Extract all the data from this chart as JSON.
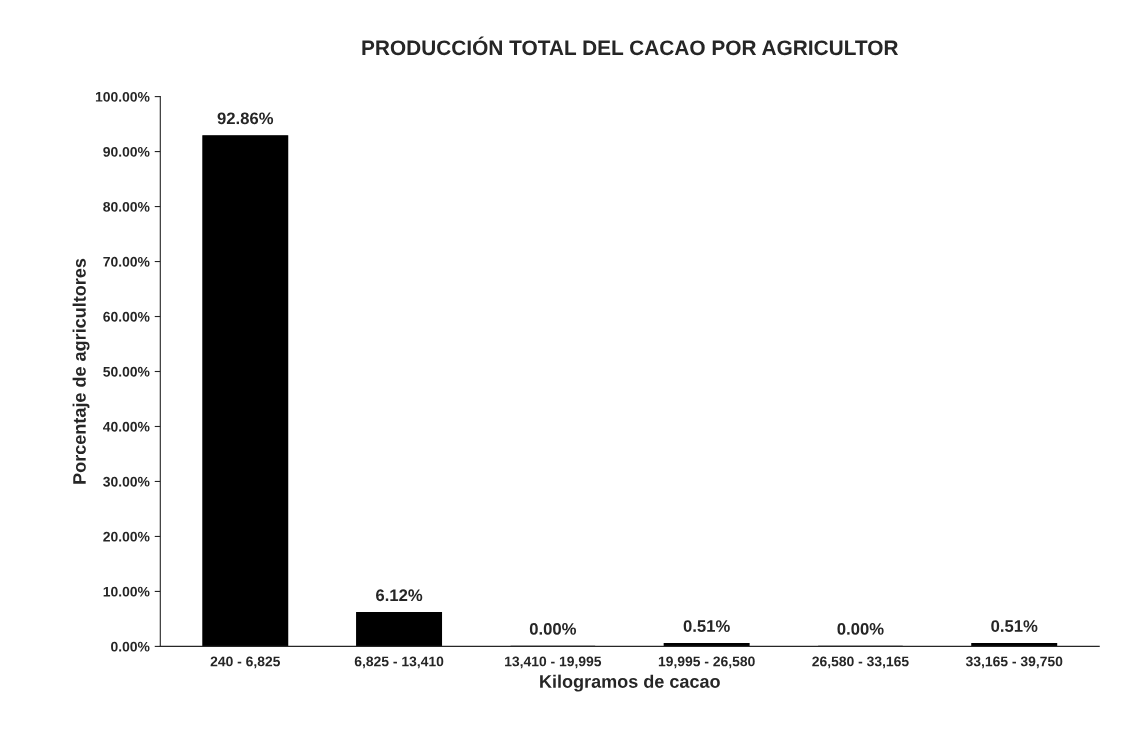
{
  "chart_data": {
    "type": "bar",
    "title": "PRODUCCIÓN TOTAL DEL CACAO POR AGRICULTOR",
    "xlabel": "Kilogramos de cacao",
    "ylabel": "Porcentaje de agricultores",
    "categories": [
      "240 - 6,825",
      "6,825 - 13,410",
      "13,410 - 19,995",
      "19,995 - 26,580",
      "26,580 - 33,165",
      "33,165 - 39,750"
    ],
    "values": [
      92.86,
      6.12,
      0.0,
      0.51,
      0.0,
      0.51
    ],
    "value_labels": [
      "92.86%",
      "6.12%",
      "0.00%",
      "0.51%",
      "0.00%",
      "0.51%"
    ],
    "color": "#000000",
    "ylim": [
      0,
      100
    ],
    "yticks": [
      {
        "value": 0,
        "label": "0.00%"
      },
      {
        "value": 10,
        "label": "10.00%"
      },
      {
        "value": 20,
        "label": "20.00%"
      },
      {
        "value": 30,
        "label": "30.00%"
      },
      {
        "value": 40,
        "label": "40.00%"
      },
      {
        "value": 50,
        "label": "50.00%"
      },
      {
        "value": 60,
        "label": "60.00%"
      },
      {
        "value": 70,
        "label": "70.00%"
      },
      {
        "value": 80,
        "label": "80.00%"
      },
      {
        "value": 90,
        "label": "90.00%"
      },
      {
        "value": 100,
        "label": "100.00%"
      }
    ],
    "grid": false,
    "legend": false
  }
}
